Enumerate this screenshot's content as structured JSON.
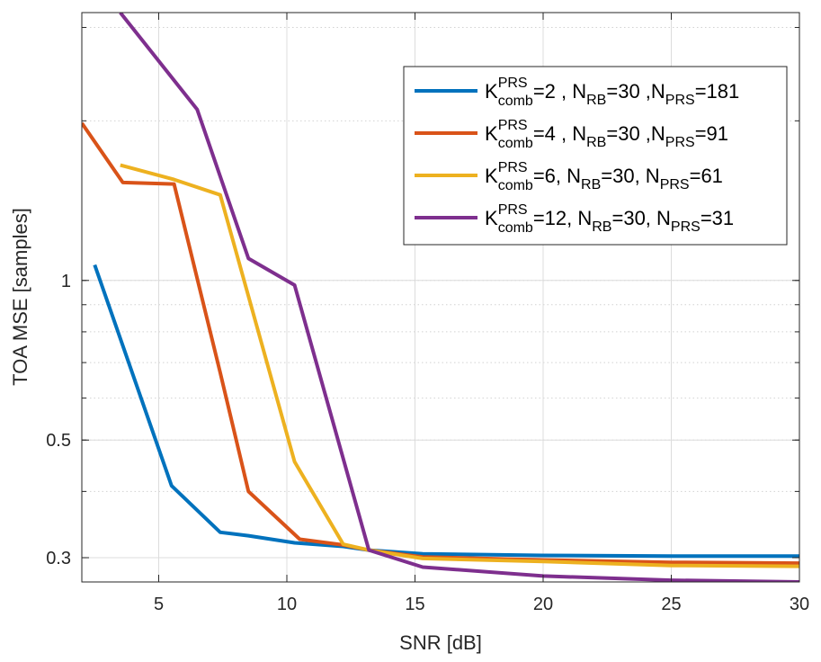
{
  "chart_data": {
    "type": "line",
    "title": "",
    "xlabel": "SNR [dB]",
    "ylabel": "TOA MSE [samples]",
    "xlim": [
      2,
      30
    ],
    "ylim": [
      0.27,
      3.2
    ],
    "yscale": "log",
    "grid": true,
    "x_ticks": [
      5,
      10,
      15,
      20,
      25,
      30
    ],
    "x_tick_labels": [
      "5",
      "10",
      "15",
      "20",
      "25",
      "30"
    ],
    "y_ticks": [
      0.3,
      0.5,
      1
    ],
    "y_tick_labels": [
      "0.3",
      "0.5",
      "1"
    ],
    "legend_position": "top-right",
    "series": [
      {
        "name": "K_comb^PRS=2 , N_RB=30 ,N_PRS=181",
        "legend": {
          "K": "K",
          "K_sup": "PRS",
          "K_sub": "comb",
          "eq1": "=2 , N",
          "N1_sub": "RB",
          "eq2": "=30 ,N",
          "N2_sub": "PRS",
          "eq3": "=181"
        },
        "color": "#0072BD",
        "x": [
          2.5,
          5.5,
          7.4,
          8.5,
          10.3,
          12.2,
          13.2,
          15.3,
          20,
          25,
          30
        ],
        "y": [
          1.07,
          0.41,
          0.335,
          0.33,
          0.32,
          0.315,
          0.31,
          0.305,
          0.303,
          0.302,
          0.302
        ]
      },
      {
        "name": "K_comb^PRS=4 , N_RB=30 ,N_PRS=91",
        "legend": {
          "K": "K",
          "K_sup": "PRS",
          "K_sub": "comb",
          "eq1": "=4 , N",
          "N1_sub": "RB",
          "eq2": "=30 ,N",
          "N2_sub": "PRS",
          "eq3": "=91"
        },
        "color": "#D95319",
        "x": [
          2,
          3.6,
          5.6,
          7.4,
          8.5,
          10.5,
          12.2,
          13.2,
          15.3,
          20,
          25,
          30
        ],
        "y": [
          1.98,
          1.53,
          1.52,
          0.67,
          0.4,
          0.325,
          0.317,
          0.31,
          0.301,
          0.297,
          0.294,
          0.293
        ]
      },
      {
        "name": "K_comb^PRS=6, N_RB=30, N_PRS=61",
        "legend": {
          "K": "K",
          "K_sup": "PRS",
          "K_sub": "comb",
          "eq1": "=6, N",
          "N1_sub": "RB",
          "eq2": "=30, N",
          "N2_sub": "PRS",
          "eq3": "=61"
        },
        "color": "#EDB120",
        "x": [
          3.5,
          5.6,
          7.4,
          10.3,
          12.2,
          13.2,
          15.3,
          20,
          25,
          30
        ],
        "y": [
          1.65,
          1.55,
          1.45,
          0.455,
          0.318,
          0.31,
          0.299,
          0.295,
          0.29,
          0.289
        ]
      },
      {
        "name": "K_comb^PRS=12, N_RB=30, N_PRS=31",
        "legend": {
          "K": "K",
          "K_sup": "PRS",
          "K_sub": "comb",
          "eq1": "=12, N",
          "N1_sub": "RB",
          "eq2": "=30, N",
          "N2_sub": "PRS",
          "eq3": "=31"
        },
        "color": "#7E2F8E",
        "x": [
          3.5,
          6.5,
          8.5,
          10.3,
          13.2,
          15.3,
          20,
          25,
          30
        ],
        "y": [
          3.2,
          2.1,
          1.1,
          0.98,
          0.31,
          0.288,
          0.277,
          0.272,
          0.27
        ]
      }
    ]
  }
}
